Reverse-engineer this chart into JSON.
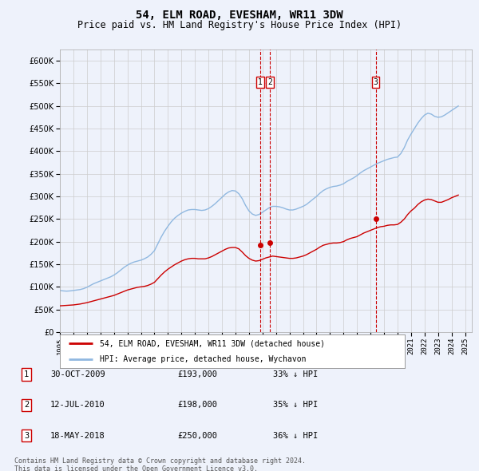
{
  "title": "54, ELM ROAD, EVESHAM, WR11 3DW",
  "subtitle": "Price paid vs. HM Land Registry's House Price Index (HPI)",
  "title_fontsize": 10,
  "subtitle_fontsize": 8.5,
  "background_color": "#eef2fb",
  "plot_bg_color": "#eef2fb",
  "grid_color": "#cccccc",
  "hpi_color": "#90b8e0",
  "price_color": "#cc0000",
  "marker_color": "#cc0000",
  "vline_color": "#cc0000",
  "ylim": [
    0,
    625000
  ],
  "yticks": [
    0,
    50000,
    100000,
    150000,
    200000,
    250000,
    300000,
    350000,
    400000,
    450000,
    500000,
    550000,
    600000
  ],
  "xlim_start": 1995.0,
  "xlim_end": 2025.5,
  "xtick_years": [
    1995,
    1996,
    1997,
    1998,
    1999,
    2000,
    2001,
    2002,
    2003,
    2004,
    2005,
    2006,
    2007,
    2008,
    2009,
    2010,
    2011,
    2012,
    2013,
    2014,
    2015,
    2016,
    2017,
    2018,
    2019,
    2020,
    2021,
    2022,
    2023,
    2024,
    2025
  ],
  "legend_line1": "54, ELM ROAD, EVESHAM, WR11 3DW (detached house)",
  "legend_line2": "HPI: Average price, detached house, Wychavon",
  "footer_line1": "Contains HM Land Registry data © Crown copyright and database right 2024.",
  "footer_line2": "This data is licensed under the Open Government Licence v3.0.",
  "transactions": [
    {
      "num": 1,
      "date": "30-OCT-2009",
      "price": 193000,
      "hpi_pct": "33% ↓ HPI",
      "year": 2009.83
    },
    {
      "num": 2,
      "date": "12-JUL-2010",
      "price": 198000,
      "hpi_pct": "35% ↓ HPI",
      "year": 2010.54
    },
    {
      "num": 3,
      "date": "18-MAY-2018",
      "price": 250000,
      "hpi_pct": "36% ↓ HPI",
      "year": 2018.38
    }
  ],
  "hpi_data": {
    "years": [
      1995.0,
      1995.25,
      1995.5,
      1995.75,
      1996.0,
      1996.25,
      1996.5,
      1996.75,
      1997.0,
      1997.25,
      1997.5,
      1997.75,
      1998.0,
      1998.25,
      1998.5,
      1998.75,
      1999.0,
      1999.25,
      1999.5,
      1999.75,
      2000.0,
      2000.25,
      2000.5,
      2000.75,
      2001.0,
      2001.25,
      2001.5,
      2001.75,
      2002.0,
      2002.25,
      2002.5,
      2002.75,
      2003.0,
      2003.25,
      2003.5,
      2003.75,
      2004.0,
      2004.25,
      2004.5,
      2004.75,
      2005.0,
      2005.25,
      2005.5,
      2005.75,
      2006.0,
      2006.25,
      2006.5,
      2006.75,
      2007.0,
      2007.25,
      2007.5,
      2007.75,
      2008.0,
      2008.25,
      2008.5,
      2008.75,
      2009.0,
      2009.25,
      2009.5,
      2009.75,
      2010.0,
      2010.25,
      2010.5,
      2010.75,
      2011.0,
      2011.25,
      2011.5,
      2011.75,
      2012.0,
      2012.25,
      2012.5,
      2012.75,
      2013.0,
      2013.25,
      2013.5,
      2013.75,
      2014.0,
      2014.25,
      2014.5,
      2014.75,
      2015.0,
      2015.25,
      2015.5,
      2015.75,
      2016.0,
      2016.25,
      2016.5,
      2016.75,
      2017.0,
      2017.25,
      2017.5,
      2017.75,
      2018.0,
      2018.25,
      2018.5,
      2018.75,
      2019.0,
      2019.25,
      2019.5,
      2019.75,
      2020.0,
      2020.25,
      2020.5,
      2020.75,
      2021.0,
      2021.25,
      2021.5,
      2021.75,
      2022.0,
      2022.25,
      2022.5,
      2022.75,
      2023.0,
      2023.25,
      2023.5,
      2023.75,
      2024.0,
      2024.25,
      2024.5
    ],
    "values": [
      92000,
      91000,
      90500,
      91000,
      92000,
      93000,
      94000,
      96000,
      99000,
      103000,
      107000,
      110000,
      113000,
      116000,
      119000,
      122000,
      126000,
      131000,
      137000,
      143000,
      148000,
      152000,
      155000,
      157000,
      159000,
      162000,
      166000,
      172000,
      180000,
      195000,
      210000,
      223000,
      234000,
      244000,
      252000,
      258000,
      263000,
      267000,
      270000,
      271000,
      271000,
      270000,
      269000,
      270000,
      273000,
      278000,
      284000,
      291000,
      298000,
      305000,
      310000,
      313000,
      312000,
      306000,
      295000,
      280000,
      268000,
      261000,
      258000,
      260000,
      265000,
      270000,
      275000,
      278000,
      278000,
      277000,
      275000,
      272000,
      270000,
      270000,
      272000,
      275000,
      278000,
      282000,
      288000,
      294000,
      300000,
      307000,
      313000,
      317000,
      320000,
      322000,
      323000,
      325000,
      328000,
      333000,
      337000,
      341000,
      346000,
      352000,
      357000,
      361000,
      365000,
      369000,
      373000,
      376000,
      379000,
      382000,
      384000,
      386000,
      387000,
      395000,
      408000,
      425000,
      438000,
      450000,
      462000,
      472000,
      480000,
      484000,
      482000,
      477000,
      475000,
      476000,
      480000,
      485000,
      490000,
      495000,
      500000
    ]
  },
  "price_data": {
    "years": [
      1995.0,
      1995.25,
      1995.5,
      1995.75,
      1996.0,
      1996.25,
      1996.5,
      1996.75,
      1997.0,
      1997.25,
      1997.5,
      1997.75,
      1998.0,
      1998.25,
      1998.5,
      1998.75,
      1999.0,
      1999.25,
      1999.5,
      1999.75,
      2000.0,
      2000.25,
      2000.5,
      2000.75,
      2001.0,
      2001.25,
      2001.5,
      2001.75,
      2002.0,
      2002.25,
      2002.5,
      2002.75,
      2003.0,
      2003.25,
      2003.5,
      2003.75,
      2004.0,
      2004.25,
      2004.5,
      2004.75,
      2005.0,
      2005.25,
      2005.5,
      2005.75,
      2006.0,
      2006.25,
      2006.5,
      2006.75,
      2007.0,
      2007.25,
      2007.5,
      2007.75,
      2008.0,
      2008.25,
      2008.5,
      2008.75,
      2009.0,
      2009.25,
      2009.5,
      2009.75,
      2010.0,
      2010.25,
      2010.5,
      2010.75,
      2011.0,
      2011.25,
      2011.5,
      2011.75,
      2012.0,
      2012.25,
      2012.5,
      2012.75,
      2013.0,
      2013.25,
      2013.5,
      2013.75,
      2014.0,
      2014.25,
      2014.5,
      2014.75,
      2015.0,
      2015.25,
      2015.5,
      2015.75,
      2016.0,
      2016.25,
      2016.5,
      2016.75,
      2017.0,
      2017.25,
      2017.5,
      2017.75,
      2018.0,
      2018.25,
      2018.5,
      2018.75,
      2019.0,
      2019.25,
      2019.5,
      2019.75,
      2020.0,
      2020.25,
      2020.5,
      2020.75,
      2021.0,
      2021.25,
      2021.5,
      2021.75,
      2022.0,
      2022.25,
      2022.5,
      2022.75,
      2023.0,
      2023.25,
      2023.5,
      2023.75,
      2024.0,
      2024.25,
      2024.5
    ],
    "values": [
      58000,
      58500,
      59000,
      59500,
      60000,
      61000,
      62000,
      63500,
      65000,
      67000,
      69000,
      71000,
      73000,
      75000,
      77000,
      79000,
      81000,
      84000,
      87000,
      90000,
      93000,
      95000,
      97000,
      99000,
      100000,
      101000,
      103000,
      106000,
      110000,
      118000,
      126000,
      133000,
      139000,
      144000,
      149000,
      153000,
      157000,
      160000,
      162000,
      163000,
      163000,
      162000,
      162000,
      162000,
      164000,
      167000,
      171000,
      175000,
      179000,
      183000,
      186000,
      187000,
      187000,
      184000,
      177000,
      169000,
      163000,
      159000,
      157000,
      158000,
      161000,
      164000,
      166000,
      168000,
      167000,
      166000,
      165000,
      164000,
      163000,
      163000,
      164000,
      166000,
      168000,
      171000,
      175000,
      179000,
      183000,
      188000,
      192000,
      194000,
      196000,
      197000,
      197000,
      198000,
      200000,
      204000,
      207000,
      209000,
      211000,
      215000,
      219000,
      222000,
      225000,
      228000,
      231000,
      233000,
      234000,
      236000,
      237000,
      237000,
      238000,
      243000,
      250000,
      260000,
      268000,
      274000,
      282000,
      288000,
      292000,
      294000,
      293000,
      290000,
      287000,
      287000,
      290000,
      293000,
      297000,
      300000,
      303000
    ]
  }
}
